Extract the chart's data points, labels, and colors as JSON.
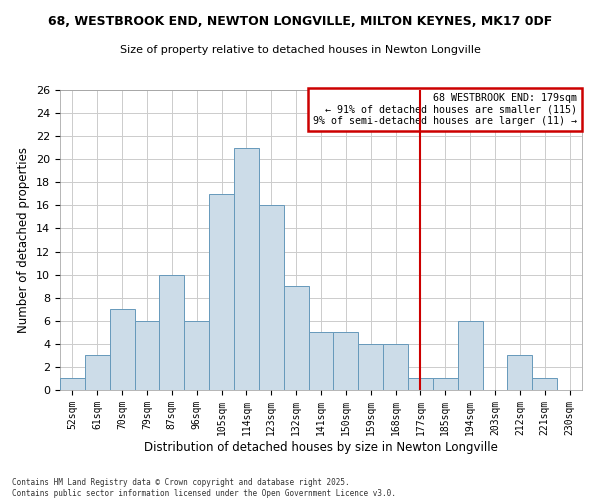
{
  "title_line1": "68, WESTBROOK END, NEWTON LONGVILLE, MILTON KEYNES, MK17 0DF",
  "title_line2": "Size of property relative to detached houses in Newton Longville",
  "xlabel": "Distribution of detached houses by size in Newton Longville",
  "ylabel": "Number of detached properties",
  "bar_color": "#ccdce8",
  "bar_edge_color": "#6699bb",
  "categories": [
    "52sqm",
    "61sqm",
    "70sqm",
    "79sqm",
    "87sqm",
    "96sqm",
    "105sqm",
    "114sqm",
    "123sqm",
    "132sqm",
    "141sqm",
    "150sqm",
    "159sqm",
    "168sqm",
    "177sqm",
    "185sqm",
    "194sqm",
    "203sqm",
    "212sqm",
    "221sqm",
    "230sqm"
  ],
  "values": [
    1,
    3,
    7,
    6,
    10,
    6,
    17,
    21,
    16,
    9,
    5,
    5,
    4,
    4,
    1,
    1,
    6,
    0,
    3,
    1,
    0
  ],
  "ylim": [
    0,
    26
  ],
  "yticks": [
    0,
    2,
    4,
    6,
    8,
    10,
    12,
    14,
    16,
    18,
    20,
    22,
    24,
    26
  ],
  "vline_idx": 14,
  "vline_color": "#cc0000",
  "annotation_title": "68 WESTBROOK END: 179sqm",
  "annotation_line1": "← 91% of detached houses are smaller (115)",
  "annotation_line2": "9% of semi-detached houses are larger (11) →",
  "annotation_box_color": "#ffffff",
  "annotation_box_edge": "#cc0000",
  "footer_line1": "Contains HM Land Registry data © Crown copyright and database right 2025.",
  "footer_line2": "Contains public sector information licensed under the Open Government Licence v3.0.",
  "bg_color": "#ffffff",
  "grid_color": "#cccccc"
}
